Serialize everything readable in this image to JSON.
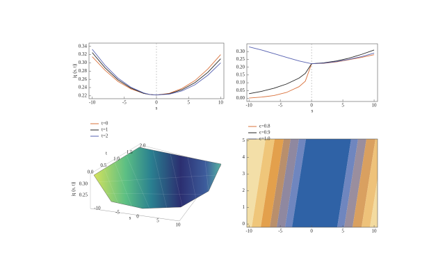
{
  "chart_data": [
    {
      "type": "line",
      "xlabel": "s",
      "ylabel": "|q (s, t)|",
      "x": [
        -10,
        -8,
        -6,
        -4,
        -2,
        -1,
        0,
        2,
        4,
        6,
        8,
        10
      ],
      "series": [
        {
          "name": "t=0",
          "color": "#d9703a",
          "values": [
            0.315,
            0.282,
            0.255,
            0.237,
            0.226,
            0.223,
            0.222,
            0.226,
            0.238,
            0.257,
            0.285,
            0.32
          ]
        },
        {
          "name": "t=1",
          "color": "#222222",
          "values": [
            0.325,
            0.288,
            0.259,
            0.239,
            0.226,
            0.223,
            0.222,
            0.225,
            0.235,
            0.252,
            0.277,
            0.31
          ]
        },
        {
          "name": "t=2",
          "color": "#5560b0",
          "values": [
            0.333,
            0.294,
            0.263,
            0.241,
            0.227,
            0.223,
            0.222,
            0.224,
            0.232,
            0.247,
            0.27,
            0.3
          ]
        }
      ],
      "xlim": [
        -10.5,
        10.5
      ],
      "ylim": [
        0.213,
        0.348
      ],
      "xticks": [
        -10,
        -5,
        0,
        5,
        10
      ],
      "yticks": [
        0.22,
        0.24,
        0.26,
        0.28,
        {
          "value": 0.3,
          "label": "0.30"
        },
        0.32,
        0.34
      ],
      "legend": "below"
    },
    {
      "type": "line",
      "xlabel": "s",
      "x": [
        -10,
        -8,
        -6,
        -4,
        -2,
        -1,
        0,
        2,
        4,
        6,
        8,
        10
      ],
      "series": [
        {
          "name": "ϵ=0.8",
          "color": "#d9703a",
          "values": [
            0.002,
            0.008,
            0.018,
            0.038,
            0.075,
            0.11,
            0.222,
            0.225,
            0.234,
            0.248,
            0.263,
            0.28
          ]
        },
        {
          "name": "ϵ=0.9",
          "color": "#222222",
          "values": [
            0.03,
            0.045,
            0.065,
            0.092,
            0.13,
            0.16,
            0.222,
            0.228,
            0.24,
            0.258,
            0.282,
            0.31
          ]
        },
        {
          "name": "ϵ=1.0",
          "color": "#5560b0",
          "values": [
            0.33,
            0.31,
            0.287,
            0.263,
            0.24,
            0.231,
            0.222,
            0.226,
            0.236,
            0.25,
            0.268,
            0.29
          ]
        }
      ],
      "xlim": [
        -10.35,
        10.55
      ],
      "ylim": [
        -0.02,
        0.35
      ],
      "xticks": [
        -10,
        -5,
        0,
        5,
        10
      ],
      "yticks": [
        {
          "value": 0,
          "label": "0.00"
        },
        0.05,
        {
          "value": 0.1,
          "label": "0.10"
        },
        0.15,
        {
          "value": 0.2,
          "label": "0.20"
        },
        0.25,
        {
          "value": 0.3,
          "label": "0.30"
        }
      ],
      "legend": "below"
    },
    {
      "type": "surface",
      "xlabel": "s",
      "ylabel": "t",
      "zlabel": "|q (s, t)|",
      "xlim": [
        -10,
        10
      ],
      "ylim": [
        0,
        2
      ],
      "zlim": [
        0.22,
        0.32
      ],
      "xticks": [
        -10,
        -5,
        0,
        5,
        10
      ],
      "yticks": [
        {
          "value": 0,
          "label": "0.0"
        },
        0.5,
        {
          "value": 1,
          "label": "1.0"
        },
        1.5,
        {
          "value": 2,
          "label": "2.0"
        }
      ],
      "zticks": [
        0.25,
        {
          "value": 0.3,
          "label": "0.30"
        }
      ]
    },
    {
      "type": "contour",
      "xlim": [
        -10.35,
        10.55
      ],
      "ylim": [
        -0.2,
        5.1
      ],
      "xticks": [
        -10,
        -5,
        0,
        5,
        10
      ],
      "yticks": [
        0,
        1,
        2,
        3,
        4,
        5
      ]
    }
  ]
}
